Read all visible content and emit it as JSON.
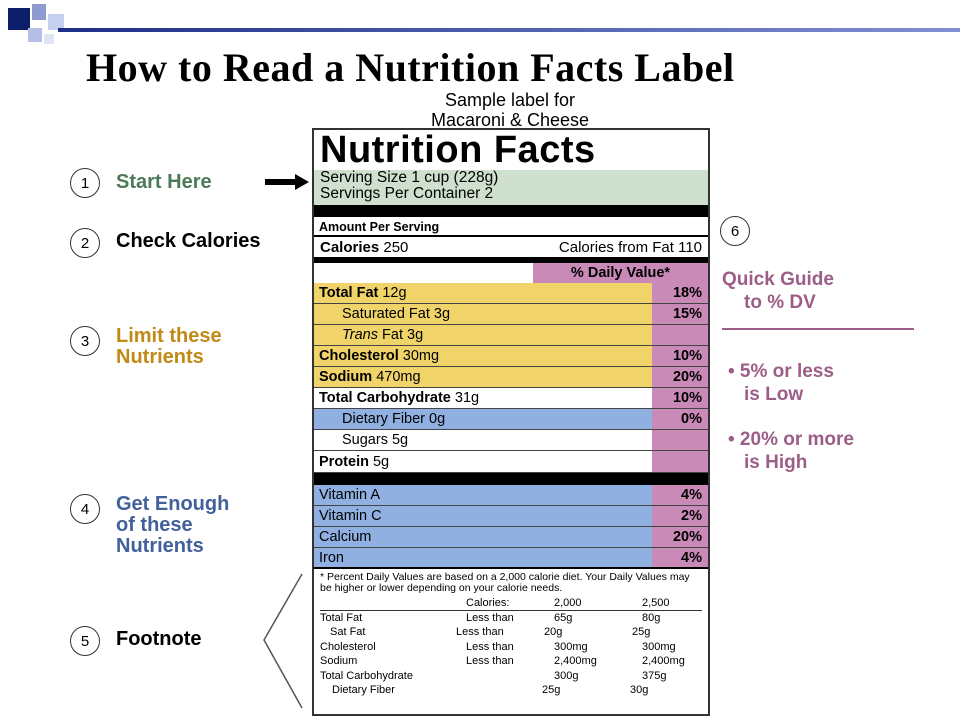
{
  "title": "How to Read a Nutrition Facts Label",
  "subtitle": [
    "Sample label for",
    "Macaroni & Cheese"
  ],
  "steps": [
    {
      "num": "1",
      "lines": [
        "Start Here"
      ],
      "color": "#4c7a57"
    },
    {
      "num": "2",
      "lines": [
        "Check Calories"
      ],
      "color": "#000000"
    },
    {
      "num": "3",
      "lines": [
        "Limit these",
        "Nutrients"
      ],
      "color": "#c08a16"
    },
    {
      "num": "4",
      "lines": [
        "Get Enough",
        "of these",
        "Nutrients"
      ],
      "color": "#42609a"
    },
    {
      "num": "5",
      "lines": [
        "Footnote"
      ],
      "color": "#000000"
    }
  ],
  "label": {
    "heading": "Nutrition Facts",
    "serving_size": "Serving Size 1 cup (228g)",
    "servings_per_container": "Servings Per Container  2",
    "amount_per_serving": "Amount Per Serving",
    "calories_label": "Calories",
    "calories_value": "250",
    "calories_fat": "Calories from Fat 110",
    "dv_header": "% Daily Value*",
    "nutrients": [
      {
        "bold": "Total Fat",
        "rest": " 12g",
        "pct": "18%"
      },
      {
        "bold": "",
        "rest": "Saturated Fat 3g",
        "pct": "15%"
      },
      {
        "bold": "",
        "italic": "Trans",
        "rest": " Fat 3g",
        "pct": ""
      },
      {
        "bold": "Cholesterol",
        "rest": " 30mg",
        "pct": "10%"
      },
      {
        "bold": "Sodium",
        "rest": " 470mg",
        "pct": "20%"
      },
      {
        "bold": "Total Carbohydrate",
        "rest": " 31g",
        "pct": "10%"
      },
      {
        "bold": "",
        "rest": "Dietary Fiber 0g",
        "pct": "0%"
      },
      {
        "bold": "",
        "rest": "Sugars 5g",
        "pct": ""
      },
      {
        "bold": "Protein",
        "rest": " 5g",
        "pct": ""
      }
    ],
    "vitamins": [
      {
        "name": "Vitamin A",
        "pct": "4%"
      },
      {
        "name": "Vitamin C",
        "pct": "2%"
      },
      {
        "name": "Calcium",
        "pct": "20%"
      },
      {
        "name": "Iron",
        "pct": "4%"
      }
    ],
    "footnote": "* Percent Daily Values are based on a 2,000 calorie diet. Your Daily Values may be higher or lower depending on your calorie needs.",
    "footnote_table": {
      "header": [
        "",
        "Calories:",
        "2,000",
        "2,500"
      ],
      "rows": [
        [
          "Total Fat",
          "Less than",
          "65g",
          "80g"
        ],
        [
          "Sat Fat",
          "Less than",
          "20g",
          "25g"
        ],
        [
          "Cholesterol",
          "Less than",
          "300mg",
          "300mg"
        ],
        [
          "Sodium",
          "Less than",
          "2,400mg",
          "2,400mg"
        ],
        [
          "Total Carbohydrate",
          "",
          "300g",
          "375g"
        ],
        [
          "Dietary Fiber",
          "",
          "25g",
          "30g"
        ]
      ]
    }
  },
  "guide": {
    "num": "6",
    "title": [
      "Quick Guide",
      "to % DV"
    ],
    "items": [
      [
        "• 5% or less",
        "is Low"
      ],
      [
        "• 20% or more",
        "is High"
      ]
    ]
  },
  "colors": {
    "green_band": "#cfe0cf",
    "yellow_band": "#f0d46a",
    "blue_band": "#90b0e2",
    "pink_band": "#c98ab8",
    "guide_text": "#9c5d86"
  }
}
